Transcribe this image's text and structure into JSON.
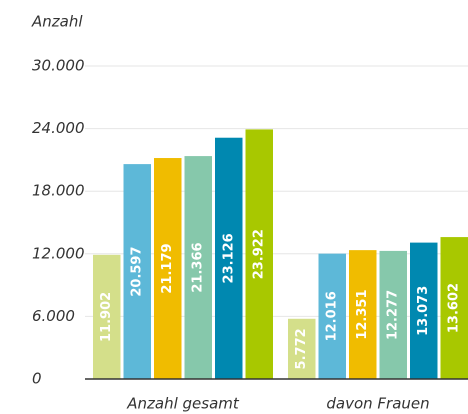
{
  "chart_data": {
    "type": "bar",
    "y_label": "Anzahl",
    "categories": [
      "Anzahl gesamt",
      "davon Frauen"
    ],
    "series": [
      {
        "color": "#d4df8a",
        "values": [
          11902,
          5772
        ],
        "value_labels": [
          "11.902",
          "5.772"
        ]
      },
      {
        "color": "#5db8d8",
        "values": [
          20597,
          12016
        ],
        "value_labels": [
          "20.597",
          "12.016"
        ]
      },
      {
        "color": "#f0bc00",
        "values": [
          21179,
          12351
        ],
        "value_labels": [
          "21.179",
          "12.351"
        ]
      },
      {
        "color": "#86c8ab",
        "values": [
          21366,
          12277
        ],
        "value_labels": [
          "21.366",
          "12.277"
        ]
      },
      {
        "color": "#0088b0",
        "values": [
          23126,
          13073
        ],
        "value_labels": [
          "23.126",
          "13.073"
        ]
      },
      {
        "color": "#a8c800",
        "values": [
          23922,
          13602
        ],
        "value_labels": [
          "23.922",
          "13.602"
        ]
      }
    ],
    "ylim": [
      0,
      30000
    ],
    "yticks": [
      0,
      {
        "value": 6000,
        "label": "6.000"
      },
      {
        "value": 12000,
        "label": "12.000"
      },
      {
        "value": 18000,
        "label": "18.000"
      },
      {
        "value": 24000,
        "label": "24.000"
      },
      {
        "value": 30000,
        "label": "30.000"
      }
    ],
    "grid": true
  }
}
